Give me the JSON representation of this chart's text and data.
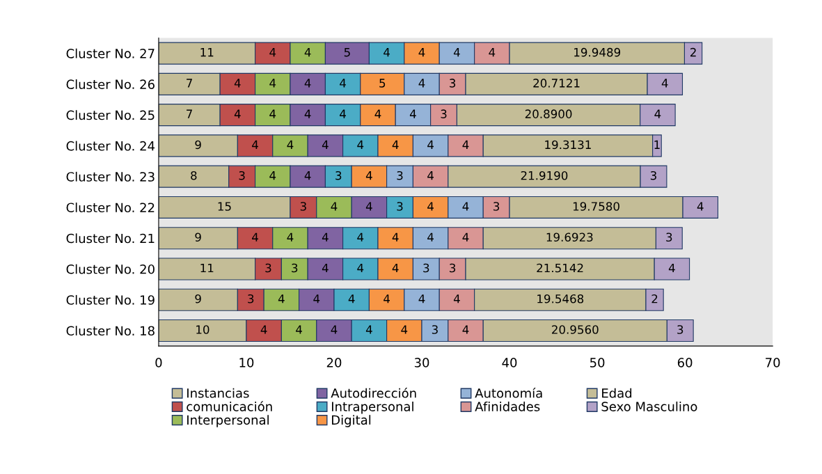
{
  "chart_data": {
    "type": "bar",
    "orientation": "horizontal",
    "stacked": true,
    "categories": [
      "Cluster No. 27",
      "Cluster No. 26",
      "Cluster No. 25",
      "Cluster No. 24",
      "Cluster No. 23",
      "Cluster No. 22",
      "Cluster No. 21",
      "Cluster No. 20",
      "Cluster No. 19",
      "Cluster No. 18"
    ],
    "xlim": [
      0,
      70
    ],
    "xticks": [
      0,
      10,
      20,
      30,
      40,
      50,
      60,
      70
    ],
    "grid": false,
    "legend": "bottom",
    "series": [
      {
        "name": "Instancias",
        "color": "#c4bd97",
        "values": [
          11,
          7,
          7,
          9,
          8,
          15,
          9,
          11,
          9,
          10
        ],
        "value_labels": [
          "11",
          "7",
          "7",
          "9",
          "8",
          "15",
          "9",
          "11",
          "9",
          "10"
        ]
      },
      {
        "name": "comunicación",
        "color": "#c0504d",
        "values": [
          4,
          4,
          4,
          4,
          3,
          3,
          4,
          3,
          3,
          4
        ],
        "value_labels": [
          "4",
          "4",
          "4",
          "4",
          "3",
          "3",
          "4",
          "3",
          "3",
          "4"
        ]
      },
      {
        "name": "Interpersonal",
        "color": "#9bbb59",
        "values": [
          4,
          4,
          4,
          4,
          4,
          4,
          4,
          3,
          4,
          4
        ],
        "value_labels": [
          "4",
          "4",
          "4",
          "4",
          "4",
          "4",
          "4",
          "3",
          "4",
          "4"
        ]
      },
      {
        "name": "Autodirección",
        "color": "#8064a2",
        "values": [
          5,
          4,
          4,
          4,
          4,
          4,
          4,
          4,
          4,
          4
        ],
        "value_labels": [
          "5",
          "4",
          "4",
          "4",
          "4",
          "4",
          "4",
          "4",
          "4",
          "4"
        ]
      },
      {
        "name": "Intrapersonal",
        "color": "#4bacc6",
        "values": [
          4,
          4,
          4,
          4,
          3,
          3,
          4,
          4,
          4,
          4
        ],
        "value_labels": [
          "4",
          "4",
          "4",
          "4",
          "3",
          "3",
          "4",
          "4",
          "4",
          "4"
        ]
      },
      {
        "name": "Digital",
        "color": "#f79646",
        "values": [
          4,
          5,
          4,
          4,
          4,
          4,
          4,
          4,
          4,
          4
        ],
        "value_labels": [
          "4",
          "5",
          "4",
          "4",
          "4",
          "4",
          "4",
          "4",
          "4",
          "4"
        ]
      },
      {
        "name": "Autonomía",
        "color": "#95b3d7",
        "values": [
          4,
          4,
          4,
          4,
          3,
          4,
          4,
          3,
          4,
          3
        ],
        "value_labels": [
          "4",
          "4",
          "4",
          "4",
          "3",
          "4",
          "4",
          "3",
          "4",
          "3"
        ]
      },
      {
        "name": "Afinidades",
        "color": "#d99694",
        "values": [
          4,
          3,
          3,
          4,
          4,
          3,
          4,
          3,
          4,
          4
        ],
        "value_labels": [
          "4",
          "3",
          "3",
          "4",
          "4",
          "3",
          "4",
          "3",
          "4",
          "4"
        ]
      },
      {
        "name": "Edad",
        "color": "#c4bd97",
        "values": [
          19.9489,
          20.7121,
          20.89,
          19.3131,
          21.919,
          19.758,
          19.6923,
          21.5142,
          19.5468,
          20.956
        ],
        "value_labels": [
          "19.9489",
          "20.7121",
          "20.8900",
          "19.3131",
          "21.9190",
          "19.7580",
          "19.6923",
          "21.5142",
          "19.5468",
          "20.9560"
        ]
      },
      {
        "name": "Sexo Masculino",
        "color": "#b3a2c7",
        "values": [
          2,
          4,
          4,
          1,
          3,
          4,
          3,
          4,
          2,
          3
        ],
        "value_labels": [
          "2",
          "4",
          "4",
          "1",
          "3",
          "4",
          "3",
          "4",
          "2",
          "3"
        ]
      }
    ]
  }
}
